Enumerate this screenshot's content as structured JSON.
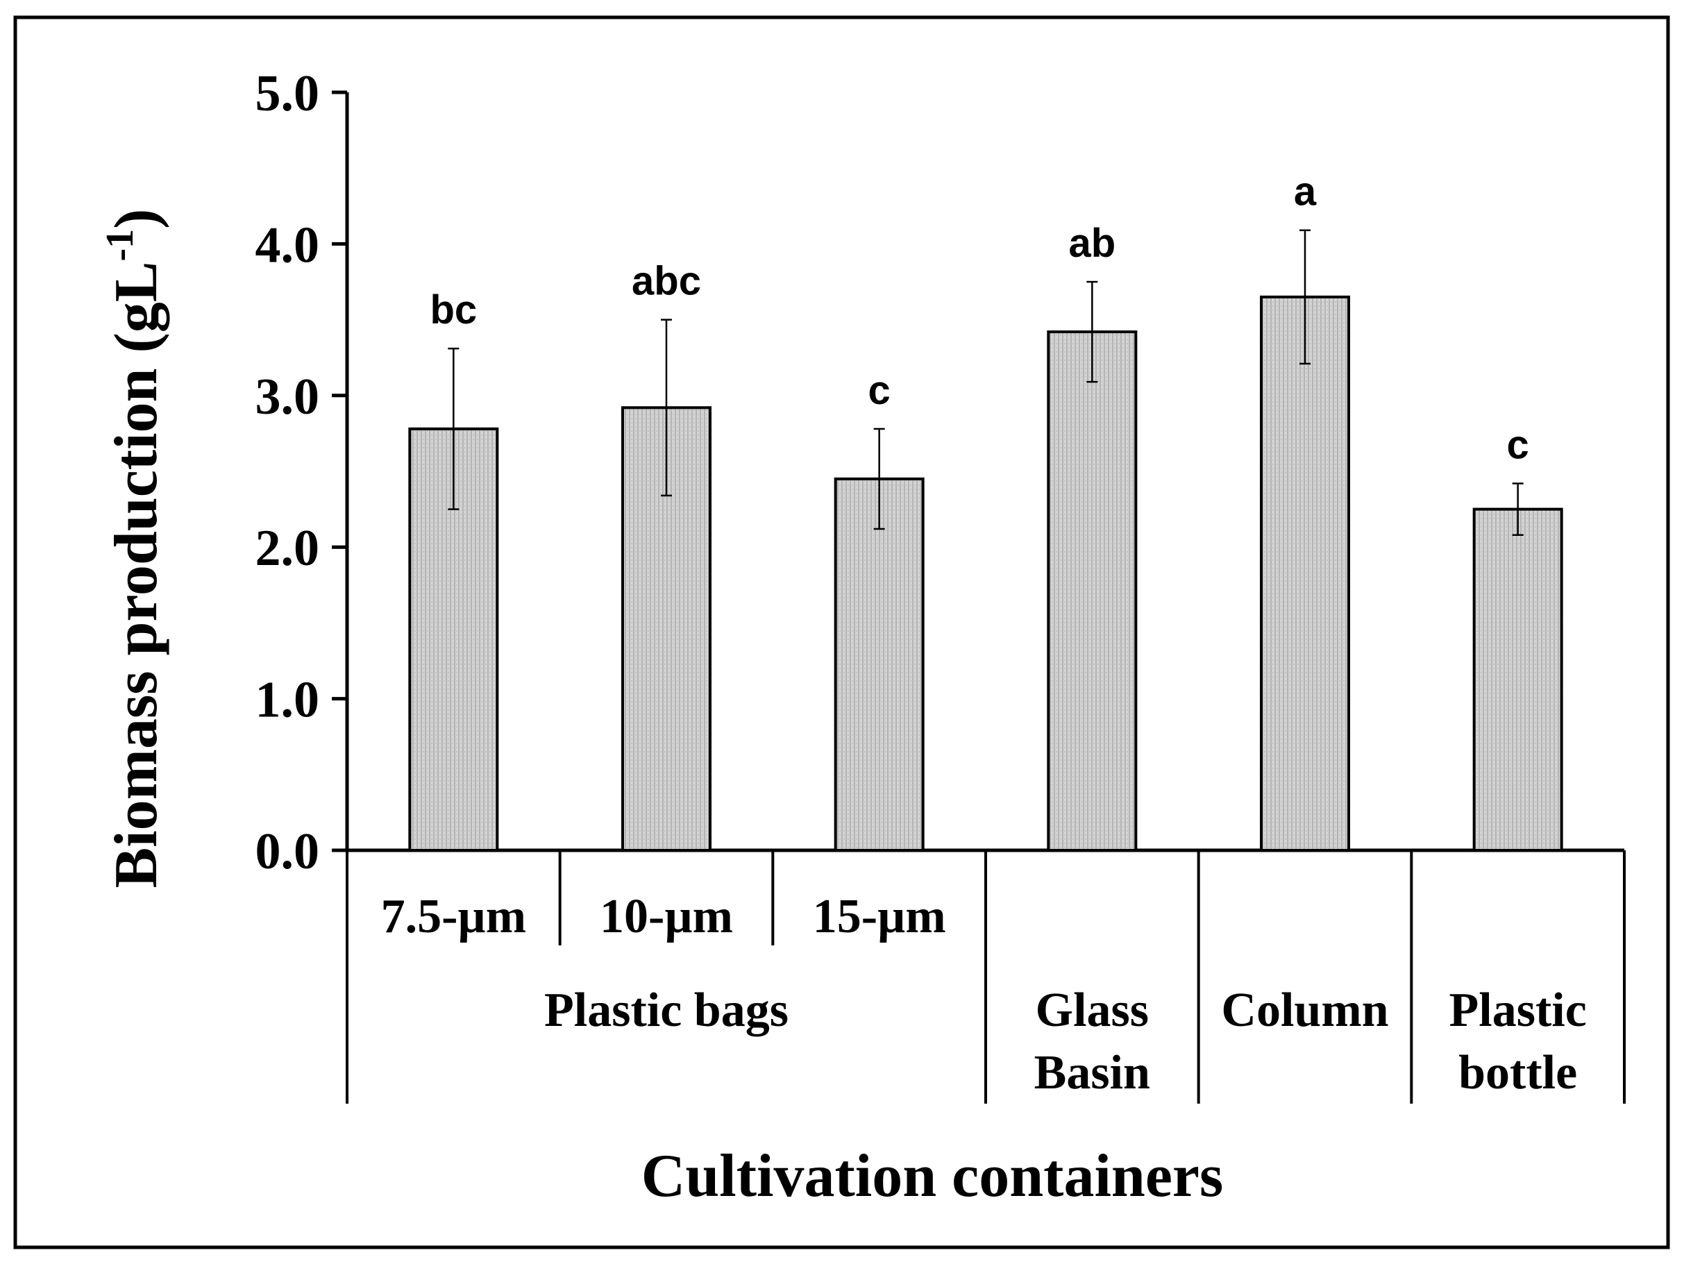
{
  "chart_data": {
    "type": "bar",
    "xlabel": "Cultivation containers",
    "ylabel": "Biomass production (gL",
    "ylabel_superscript": "-1",
    "ylabel_close": ")",
    "ylim": [
      0,
      5
    ],
    "yticks": [
      "0.0",
      "1.0",
      "2.0",
      "3.0",
      "4.0",
      "5.0"
    ],
    "grid": false,
    "categories": [
      "7.5-µm",
      "10-µm",
      "15-µm",
      "Glass Basin",
      "Column",
      "Plastic bottle"
    ],
    "category_lines": [
      [
        "7.5-µm"
      ],
      [
        "10-µm"
      ],
      [
        "15-µm"
      ],
      [
        "Glass",
        "Basin"
      ],
      [
        "Column"
      ],
      [
        "Plastic",
        "bottle"
      ]
    ],
    "groups": [
      {
        "label": "Plastic bags",
        "members": [
          0,
          1,
          2
        ]
      }
    ],
    "values": [
      2.78,
      2.92,
      2.45,
      3.42,
      3.65,
      2.25
    ],
    "errors": [
      0.53,
      0.58,
      0.33,
      0.33,
      0.44,
      0.17
    ],
    "significance_letters": [
      "bc",
      "abc",
      "c",
      "ab",
      "a",
      "c"
    ],
    "bar_fill": "#d2d2d2",
    "bar_stroke": "#000000"
  }
}
